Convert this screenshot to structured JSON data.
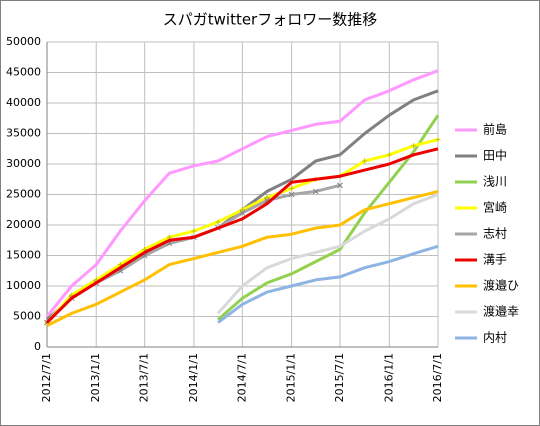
{
  "chart_data": {
    "type": "line",
    "title": "スパガtwitterフォロワー数推移",
    "x": [
      "2012/7/1",
      "2012/10/1",
      "2013/1/1",
      "2013/4/1",
      "2013/7/1",
      "2013/10/1",
      "2014/1/1",
      "2014/4/1",
      "2014/7/1",
      "2014/10/1",
      "2015/1/1",
      "2015/4/1",
      "2015/7/1",
      "2015/10/1",
      "2016/1/1",
      "2016/4/1",
      "2016/7/1"
    ],
    "xlim": [
      "2012/7/1",
      "2016/7/1"
    ],
    "xticks": [
      "2012/7/1",
      "2013/1/1",
      "2013/7/1",
      "2014/1/1",
      "2014/7/1",
      "2015/1/1",
      "2015/7/1",
      "2016/1/1",
      "2016/7/1"
    ],
    "ylim": [
      0,
      50000
    ],
    "yticks": [
      0,
      5000,
      10000,
      15000,
      20000,
      25000,
      30000,
      35000,
      40000,
      45000,
      50000
    ],
    "grid": true,
    "legend": "right",
    "series": [
      {
        "name": "前島",
        "color": "#ff99ff",
        "values": [
          5000,
          10000,
          13500,
          19000,
          24000,
          28500,
          29700,
          30500,
          32500,
          34500,
          35500,
          36500,
          37000,
          40500,
          42000,
          43800,
          45300
        ]
      },
      {
        "name": "田中",
        "color": "#808080",
        "values": [
          4500,
          8000,
          10500,
          13000,
          15000,
          17000,
          18000,
          19500,
          22500,
          25500,
          27500,
          30500,
          31500,
          35000,
          38000,
          40500,
          42000
        ]
      },
      {
        "name": "浅川",
        "color": "#92d050",
        "values": [
          null,
          null,
          null,
          null,
          null,
          null,
          null,
          4500,
          8000,
          10500,
          12000,
          14000,
          16000,
          22000,
          27000,
          32000,
          38000
        ]
      },
      {
        "name": "宮崎",
        "color": "#ffff00",
        "marker": "plus",
        "values": [
          4000,
          8500,
          11000,
          13500,
          16000,
          18000,
          19000,
          20500,
          22500,
          24500,
          26000,
          27500,
          28000,
          30500,
          31500,
          33000,
          34000
        ]
      },
      {
        "name": "志村",
        "color": "#a6a6a6",
        "marker": "x",
        "values": [
          4000,
          8000,
          10500,
          12500,
          15000,
          17000,
          18000,
          19500,
          22000,
          24000,
          25000,
          25500,
          26500,
          null,
          null,
          null,
          null
        ]
      },
      {
        "name": "溝手",
        "color": "#ee0000",
        "values": [
          4000,
          8000,
          10500,
          13000,
          15500,
          17500,
          18000,
          19500,
          21000,
          23500,
          27000,
          27500,
          28000,
          29000,
          30000,
          31500,
          32500
        ]
      },
      {
        "name": "渡邉ひ",
        "color": "#ffc000",
        "values": [
          3500,
          5500,
          7000,
          9000,
          11000,
          13500,
          14500,
          15500,
          16500,
          18000,
          18500,
          19500,
          20000,
          22500,
          23500,
          24500,
          25500
        ]
      },
      {
        "name": "渡邉幸",
        "color": "#d9d9d9",
        "values": [
          null,
          null,
          null,
          null,
          null,
          null,
          null,
          5500,
          10000,
          13000,
          14500,
          15500,
          16500,
          19000,
          21000,
          23500,
          25000
        ]
      },
      {
        "name": "内村",
        "color": "#8db4e2",
        "values": [
          null,
          null,
          null,
          null,
          null,
          null,
          null,
          4000,
          7000,
          9000,
          10000,
          11000,
          11500,
          13000,
          14000,
          15300,
          16500
        ]
      }
    ]
  }
}
